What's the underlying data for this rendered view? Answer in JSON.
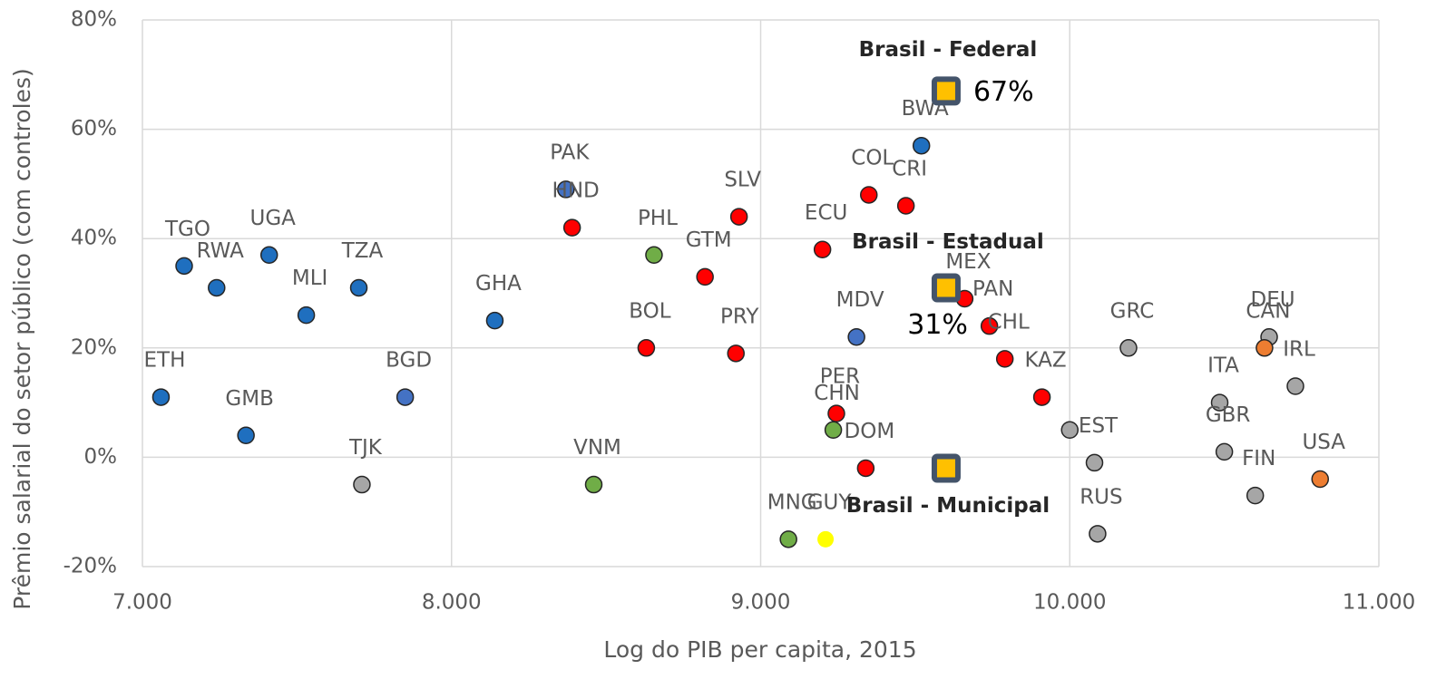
{
  "chart_data": {
    "type": "scatter",
    "x_label": "Log do PIB per capita, 2015",
    "y_label": "Prêmio salarial do setor público (com controles)",
    "xlim": [
      7,
      11
    ],
    "xticks": [
      {
        "value": 7,
        "label": "7.000"
      },
      {
        "value": 8,
        "label": "8.000"
      },
      {
        "value": 9,
        "label": "9.000"
      },
      {
        "value": 10,
        "label": "10.000"
      },
      {
        "value": 11,
        "label": "11.000"
      }
    ],
    "ylim": [
      -20,
      80
    ],
    "yticks": [
      {
        "value": -20,
        "label": "-20%"
      },
      {
        "value": 0,
        "label": "0%"
      },
      {
        "value": 20,
        "label": "20%"
      },
      {
        "value": 40,
        "label": "40%"
      },
      {
        "value": 60,
        "label": "60%"
      },
      {
        "value": 80,
        "label": "80%"
      }
    ],
    "grid": true,
    "series": [
      {
        "color": "#1f6fbf",
        "labels": [
          "TGO",
          "RWA",
          "UGA",
          "MLI",
          "TZA",
          "ETH",
          "GMB",
          "GHA",
          "BWA"
        ],
        "x": [
          7.135,
          7.24,
          7.41,
          7.53,
          7.7,
          7.06,
          7.335,
          8.14,
          9.52
        ],
        "values": [
          35,
          31,
          37,
          26,
          31,
          11,
          4,
          25,
          57
        ]
      },
      {
        "color": "#4472c4",
        "labels": [
          "PAK",
          "BGD",
          "MDV"
        ],
        "x": [
          8.37,
          7.85,
          9.31
        ],
        "values": [
          49,
          11,
          22
        ]
      },
      {
        "color": "#ff0000",
        "labels": [
          "HND",
          "SLV",
          "GTM",
          "BOL",
          "PRY",
          "ECU",
          "COL",
          "CRI",
          "MEX",
          "PAN",
          "CHL",
          "KAZ",
          "PER",
          "DOM"
        ],
        "x": [
          8.39,
          8.93,
          8.82,
          8.63,
          8.92,
          9.2,
          9.35,
          9.47,
          9.66,
          9.74,
          9.79,
          9.91,
          9.245,
          9.34
        ],
        "values": [
          42,
          44,
          33,
          20,
          19,
          38,
          48,
          46,
          29,
          24,
          18,
          11,
          8,
          -2
        ]
      },
      {
        "color": "#70ad47",
        "labels": [
          "PHL",
          "VNM",
          "CHN",
          "MNG"
        ],
        "x": [
          8.655,
          8.46,
          9.235,
          9.09
        ],
        "values": [
          37,
          -5,
          5,
          -15
        ]
      },
      {
        "color": "#ffff00",
        "labels": [
          "GUY"
        ],
        "x": [
          9.21
        ],
        "values": [
          -15
        ]
      },
      {
        "color": "#a6a6a6",
        "labels": [
          "TJK",
          "GRC",
          null,
          "EST",
          "RUS",
          "ITA",
          "GBR",
          "FIN",
          "DEU",
          "IRL"
        ],
        "x": [
          7.71,
          10.19,
          10.0,
          10.08,
          10.09,
          10.485,
          10.5,
          10.6,
          10.645,
          10.73
        ],
        "values": [
          -5,
          20,
          5,
          -1,
          -14,
          10,
          1,
          -7,
          22,
          13
        ]
      },
      {
        "color": "#ed7d31",
        "labels": [
          "CAN",
          "USA"
        ],
        "x": [
          10.63,
          10.81
        ],
        "values": [
          20,
          -4
        ]
      },
      {
        "color": "#ffc000",
        "marker": "square",
        "labels": [
          "Brasil - Federal",
          "Brasil - Estadual",
          "Brasil - Municipal"
        ],
        "x": [
          9.6,
          9.6,
          9.6
        ],
        "values": [
          67,
          31,
          -2
        ],
        "value_labels": [
          "67%",
          "31%",
          null
        ]
      }
    ]
  }
}
